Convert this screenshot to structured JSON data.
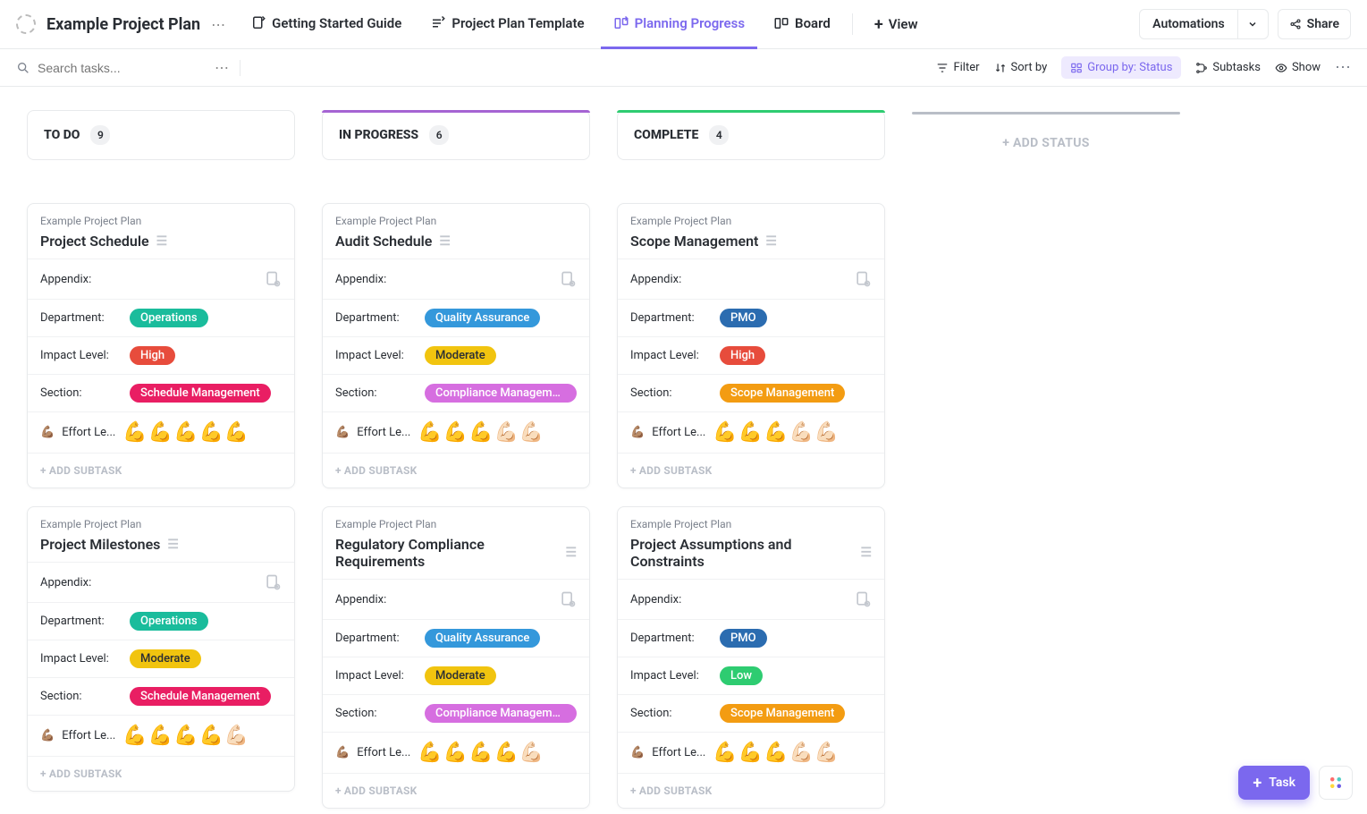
{
  "header": {
    "project_title": "Example Project Plan",
    "tabs": [
      {
        "label": "Getting Started Guide"
      },
      {
        "label": "Project Plan Template"
      },
      {
        "label": "Planning Progress",
        "active": true
      },
      {
        "label": "Board"
      }
    ],
    "plus_view": "View",
    "automations": "Automations",
    "share": "Share"
  },
  "toolbar": {
    "search_placeholder": "Search tasks...",
    "filter": "Filter",
    "sortby": "Sort by",
    "groupby": "Group by: Status",
    "subtasks": "Subtasks",
    "show": "Show"
  },
  "board": {
    "add_status": "+ ADD STATUS",
    "add_subtask": "+ ADD SUBTASK",
    "appendix_label": "Appendix:",
    "department_label": "Department:",
    "impact_label": "Impact Level:",
    "section_label": "Section:",
    "effort_label": "Effort Le...",
    "effort_emoji": "💪🏽",
    "columns": [
      {
        "name": "TO DO",
        "count": "9",
        "style": "todo",
        "cards": [
          {
            "project": "Example Project Plan",
            "title": "Project Schedule",
            "department": {
              "text": "Operations",
              "color": "#1abc9c"
            },
            "impact": {
              "text": "High",
              "color": "#e74c3c"
            },
            "section": {
              "text": "Schedule Management",
              "color": "#e91e63"
            },
            "effort": 5
          },
          {
            "project": "Example Project Plan",
            "title": "Project Milestones",
            "department": {
              "text": "Operations",
              "color": "#1abc9c"
            },
            "impact": {
              "text": "Moderate",
              "color": "#f1c40f"
            },
            "section": {
              "text": "Schedule Management",
              "color": "#e91e63"
            },
            "effort": 4
          }
        ]
      },
      {
        "name": "IN PROGRESS",
        "count": "6",
        "style": "inprog",
        "cards": [
          {
            "project": "Example Project Plan",
            "title": "Audit Schedule",
            "department": {
              "text": "Quality Assurance",
              "color": "#3498db"
            },
            "impact": {
              "text": "Moderate",
              "color": "#f1c40f"
            },
            "section": {
              "text": "Compliance Management",
              "color": "#d66ee0"
            },
            "effort": 3
          },
          {
            "project": "Example Project Plan",
            "title": "Regulatory Compliance Requirements",
            "department": {
              "text": "Quality Assurance",
              "color": "#3498db"
            },
            "impact": {
              "text": "Moderate",
              "color": "#f1c40f"
            },
            "section": {
              "text": "Compliance Management",
              "color": "#d66ee0"
            },
            "effort": 4
          }
        ]
      },
      {
        "name": "COMPLETE",
        "count": "4",
        "style": "complete",
        "cards": [
          {
            "project": "Example Project Plan",
            "title": "Scope Management",
            "department": {
              "text": "PMO",
              "color": "#2b6cb0"
            },
            "impact": {
              "text": "High",
              "color": "#e74c3c"
            },
            "section": {
              "text": "Scope Management",
              "color": "#f39c12"
            },
            "effort": 3
          },
          {
            "project": "Example Project Plan",
            "title": "Project Assumptions and Constraints",
            "department": {
              "text": "PMO",
              "color": "#2b6cb0"
            },
            "impact": {
              "text": "Low",
              "color": "#2ecc71"
            },
            "section": {
              "text": "Scope Management",
              "color": "#f39c12"
            },
            "effort": 3
          }
        ]
      }
    ]
  },
  "fab": {
    "task": "Task"
  }
}
